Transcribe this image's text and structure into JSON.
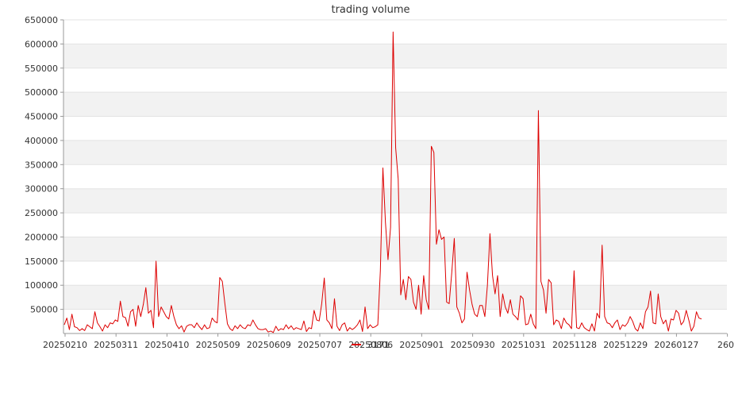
{
  "chart_data": {
    "type": "line",
    "title": "trading volume",
    "xlabel": "",
    "ylabel": "",
    "ylim": [
      0,
      650000
    ],
    "yticks": [
      50000,
      100000,
      150000,
      200000,
      250000,
      300000,
      350000,
      400000,
      450000,
      500000,
      550000,
      600000,
      650000
    ],
    "x_tick_labels": [
      "20250210",
      "20250311",
      "20250410",
      "20250509",
      "20250609",
      "20250707",
      "20250806",
      "20250901",
      "20250930",
      "20251031",
      "20251128",
      "20251229",
      "20260127",
      "260"
    ],
    "grid": "horizontal, alternating band shading",
    "legend": {
      "placement": "bottom-center",
      "entries": [
        {
          "label": "3171",
          "color": "#dd0000"
        }
      ]
    },
    "series": [
      {
        "name": "3171",
        "color": "#dd0000",
        "values": [
          18000,
          32000,
          8000,
          40000,
          14000,
          12000,
          6000,
          10000,
          6000,
          18000,
          14000,
          10000,
          45000,
          22000,
          14000,
          5000,
          18000,
          12000,
          22000,
          20000,
          28000,
          25000,
          67000,
          35000,
          33000,
          15000,
          45000,
          50000,
          15000,
          58000,
          35000,
          60000,
          95000,
          42000,
          48000,
          12000,
          150000,
          35000,
          55000,
          45000,
          35000,
          30000,
          58000,
          35000,
          18000,
          10000,
          16000,
          3000,
          15000,
          18000,
          18000,
          12000,
          22000,
          14000,
          8000,
          18000,
          10000,
          12000,
          32000,
          25000,
          22000,
          116000,
          108000,
          62000,
          20000,
          10000,
          6000,
          16000,
          10000,
          18000,
          12000,
          10000,
          18000,
          16000,
          28000,
          18000,
          10000,
          8000,
          8000,
          10000,
          3000,
          5000,
          2000,
          15000,
          6000,
          10000,
          8000,
          18000,
          10000,
          16000,
          8000,
          12000,
          10000,
          8000,
          26000,
          4000,
          12000,
          10000,
          48000,
          28000,
          26000,
          62000,
          115000,
          28000,
          22000,
          10000,
          72000,
          15000,
          6000,
          18000,
          22000,
          5000,
          12000,
          8000,
          12000,
          18000,
          28000,
          4000,
          55000,
          10000,
          18000,
          12000,
          14000,
          18000,
          130000,
          343000,
          230000,
          153000,
          220000,
          625000,
          385000,
          320000,
          80000,
          112000,
          70000,
          118000,
          112000,
          65000,
          50000,
          100000,
          40000,
          120000,
          70000,
          50000,
          388000,
          375000,
          185000,
          215000,
          195000,
          200000,
          65000,
          62000,
          125000,
          197000,
          55000,
          42000,
          22000,
          30000,
          127000,
          90000,
          60000,
          40000,
          35000,
          58000,
          58000,
          35000,
          100000,
          207000,
          120000,
          82000,
          120000,
          35000,
          82000,
          55000,
          42000,
          70000,
          40000,
          35000,
          28000,
          78000,
          72000,
          18000,
          20000,
          40000,
          20000,
          10000,
          462000,
          108000,
          90000,
          42000,
          112000,
          105000,
          18000,
          28000,
          25000,
          10000,
          32000,
          22000,
          18000,
          10000,
          130000,
          12000,
          10000,
          22000,
          12000,
          8000,
          5000,
          20000,
          5000,
          42000,
          32000,
          183000,
          35000,
          22000,
          20000,
          12000,
          22000,
          28000,
          8000,
          18000,
          15000,
          22000,
          35000,
          25000,
          10000,
          5000,
          22000,
          10000,
          45000,
          55000,
          88000,
          22000,
          20000,
          82000,
          35000,
          20000,
          28000,
          5000,
          30000,
          28000,
          48000,
          42000,
          18000,
          25000,
          48000,
          28000,
          5000,
          15000,
          45000,
          32000,
          30000
        ]
      }
    ]
  }
}
